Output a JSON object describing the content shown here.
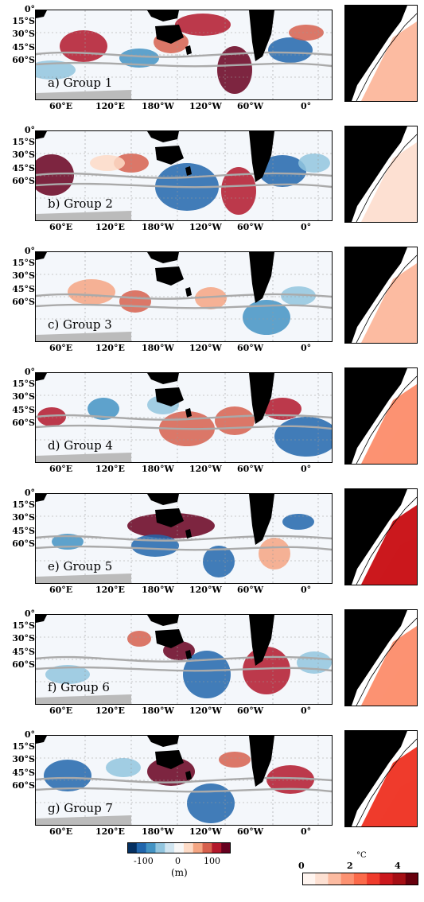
{
  "panels": [
    {
      "label": "a) Group 1"
    },
    {
      "label": "b) Group 2"
    },
    {
      "label": "c) Group 3"
    },
    {
      "label": "d) Group 4"
    },
    {
      "label": "e) Group 5"
    },
    {
      "label": "f) Group 6"
    },
    {
      "label": "g) Group 7"
    }
  ],
  "lat_labels": [
    "0°",
    "15°S",
    "30°S",
    "45°S",
    "60°S"
  ],
  "lon_labels": [
    "60°E",
    "120°E",
    "180°W",
    "120°W",
    "60°W",
    "0°"
  ],
  "colorbar_left": {
    "ticks": [
      "-100",
      "0",
      "100"
    ],
    "unit": "(m)",
    "colors": [
      "#053061",
      "#2166ac",
      "#4393c3",
      "#92c5de",
      "#d1e5f0",
      "#f7f7f7",
      "#fddbc7",
      "#f4a582",
      "#d6604d",
      "#b2182b",
      "#67001f"
    ]
  },
  "colorbar_right": {
    "ticks": [
      "0",
      "2",
      "4"
    ],
    "unit": "°C",
    "colors": [
      "#fff5f0",
      "#fde0d2",
      "#fcbba1",
      "#fc9272",
      "#fb6a4a",
      "#ef3b2c",
      "#cb181d",
      "#a50f15",
      "#67000d"
    ]
  }
}
